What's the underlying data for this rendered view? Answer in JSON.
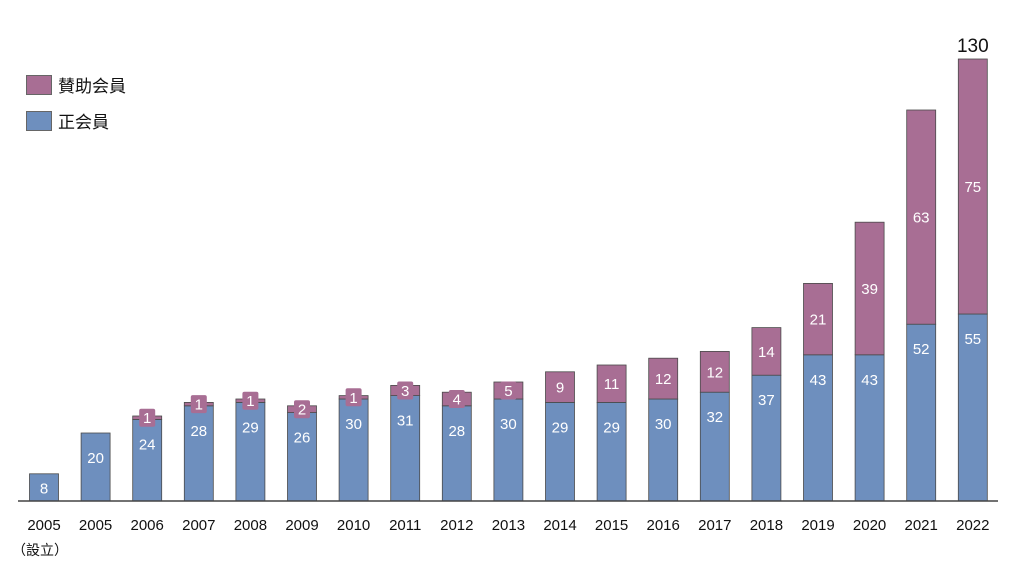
{
  "chart_data": {
    "type": "bar",
    "stacked": true,
    "title": "",
    "xlabel": "",
    "ylabel": "",
    "categories": [
      "2005",
      "2005",
      "2006",
      "2007",
      "2008",
      "2009",
      "2010",
      "2011",
      "2012",
      "2013",
      "2014",
      "2015",
      "2016",
      "2017",
      "2018",
      "2019",
      "2020",
      "2021",
      "2022"
    ],
    "category_sublabels": [
      "（設立）",
      "",
      "",
      "",
      "",
      "",
      "",
      "",
      "",
      "",
      "",
      "",
      "",
      "",
      "",
      "",
      "",
      "",
      ""
    ],
    "series": [
      {
        "name": "正会員",
        "color": "#6e8fbe",
        "values": [
          8,
          20,
          24,
          28,
          29,
          26,
          30,
          31,
          28,
          30,
          29,
          29,
          30,
          32,
          37,
          43,
          43,
          52,
          55
        ]
      },
      {
        "name": "賛助会員",
        "color": "#a86e94",
        "values": [
          0,
          0,
          1,
          1,
          1,
          2,
          1,
          3,
          4,
          5,
          9,
          11,
          12,
          12,
          14,
          21,
          39,
          63,
          75
        ]
      }
    ],
    "total_labels": [
      {
        "category_index": 18,
        "text": "130"
      }
    ],
    "ylim": [
      0,
      130
    ],
    "grid": false,
    "legend": {
      "position": "top-left",
      "entries": [
        "賛助会員",
        "正会員"
      ]
    }
  }
}
